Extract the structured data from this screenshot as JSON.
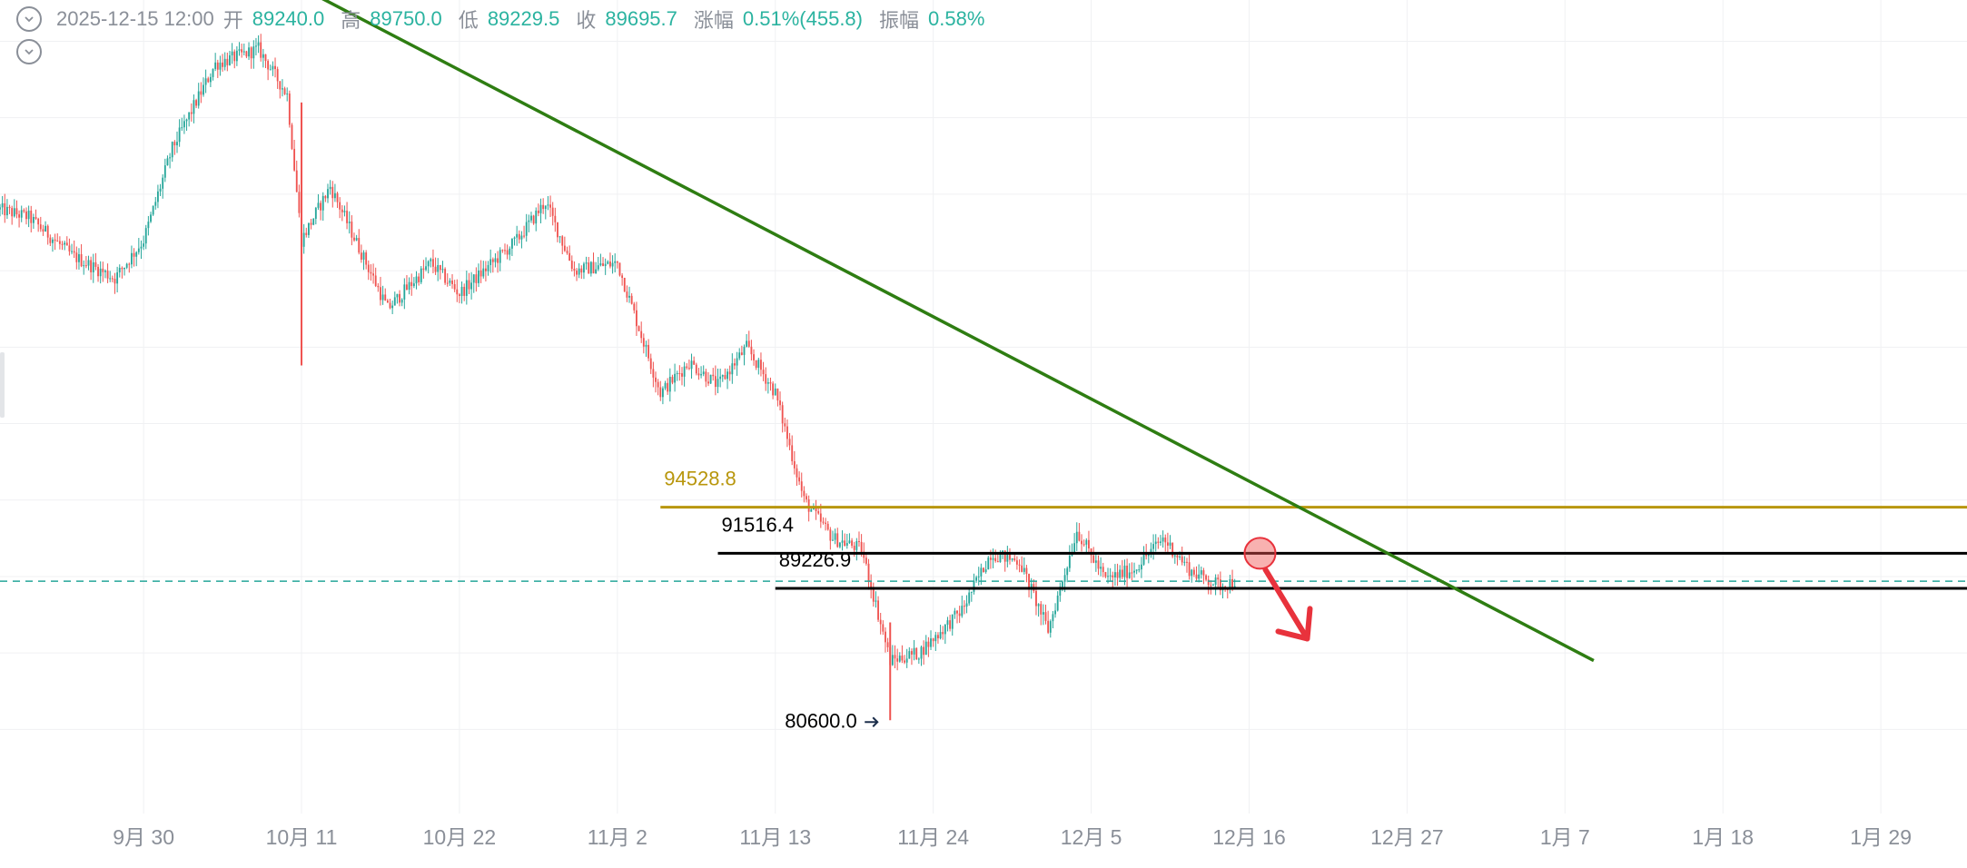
{
  "header": {
    "datetime": "2025-12-15 12:00",
    "open_label": "开",
    "open_value": "89240.0",
    "high_label": "高",
    "high_value": "89750.0",
    "low_label": "低",
    "low_value": "89229.5",
    "close_label": "收",
    "close_value": "89695.7",
    "change_label": "涨幅",
    "change_value": "0.51%(455.8)",
    "amp_label": "振幅",
    "amp_value": "0.58%"
  },
  "colors": {
    "up": "#26a69a",
    "down": "#ef5350",
    "trendline": "#2e7d12",
    "resistance": "#b8960c",
    "level": "#000000",
    "marker": "#e8323c",
    "current_price": "#26a69a",
    "grid": "#f0f1f3"
  },
  "icons": [
    "chevron-down-icon",
    "chevron-down-icon",
    "arrow-right-icon",
    "arrow-down-right-icon"
  ],
  "chart_data": {
    "type": "candlestick",
    "x_axis_labels": [
      "9月 30",
      "10月 11",
      "10月 22",
      "11月 2",
      "11月 13",
      "11月 24",
      "12月 5",
      "12月 16",
      "12月 27",
      "1月 7",
      "1月 18",
      "1月 29"
    ],
    "x_range": [
      "2025-09-20",
      "2026-02-04"
    ],
    "y_range": [
      74500,
      127700
    ],
    "grid": true,
    "annotations": {
      "resistance": {
        "label": "94528.8",
        "value": 94528.8
      },
      "level_high": {
        "label": "91516.4",
        "value": 91516.4
      },
      "level_low": {
        "label": "89226.9",
        "value": 89226.9
      },
      "low_marker": {
        "label": "80600.0",
        "value": 80600.0
      },
      "current_price": 89695.7
    },
    "trendline": {
      "from": {
        "date": "2025-10-11",
        "price": 128500
      },
      "to": {
        "date": "2026-01-09",
        "price": 84500
      }
    },
    "series_keypoints": [
      [
        "2025-09-20",
        114000
      ],
      [
        "2025-09-22",
        113500
      ],
      [
        "2025-09-25",
        111000
      ],
      [
        "2025-09-28",
        109500
      ],
      [
        "2025-09-30",
        112000
      ],
      [
        "2025-10-02",
        118000
      ],
      [
        "2025-10-05",
        123500
      ],
      [
        "2025-10-08",
        124500
      ],
      [
        "2025-10-10",
        121500
      ],
      [
        "2025-10-11",
        112000
      ],
      [
        "2025-10-13",
        115500
      ],
      [
        "2025-10-17",
        107500
      ],
      [
        "2025-10-20",
        110500
      ],
      [
        "2025-10-22",
        108500
      ],
      [
        "2025-10-26",
        112000
      ],
      [
        "2025-10-28",
        114500
      ],
      [
        "2025-10-30",
        110000
      ],
      [
        "2025-11-02",
        110500
      ],
      [
        "2025-11-05",
        102000
      ],
      [
        "2025-11-07",
        104000
      ],
      [
        "2025-11-09",
        102500
      ],
      [
        "2025-11-11",
        105000
      ],
      [
        "2025-11-13",
        102000
      ],
      [
        "2025-11-15",
        95000
      ],
      [
        "2025-11-17",
        92500
      ],
      [
        "2025-11-19",
        91800
      ],
      [
        "2025-11-21",
        84500
      ],
      [
        "2025-11-23",
        85000
      ],
      [
        "2025-11-26",
        87800
      ],
      [
        "2025-11-28",
        91500
      ],
      [
        "2025-11-30",
        91000
      ],
      [
        "2025-12-02",
        86500
      ],
      [
        "2025-12-04",
        93000
      ],
      [
        "2025-12-06",
        89800
      ],
      [
        "2025-12-08",
        90500
      ],
      [
        "2025-12-10",
        92500
      ],
      [
        "2025-12-12",
        90300
      ],
      [
        "2025-12-14",
        89400
      ],
      [
        "2025-12-15",
        89695
      ]
    ]
  }
}
